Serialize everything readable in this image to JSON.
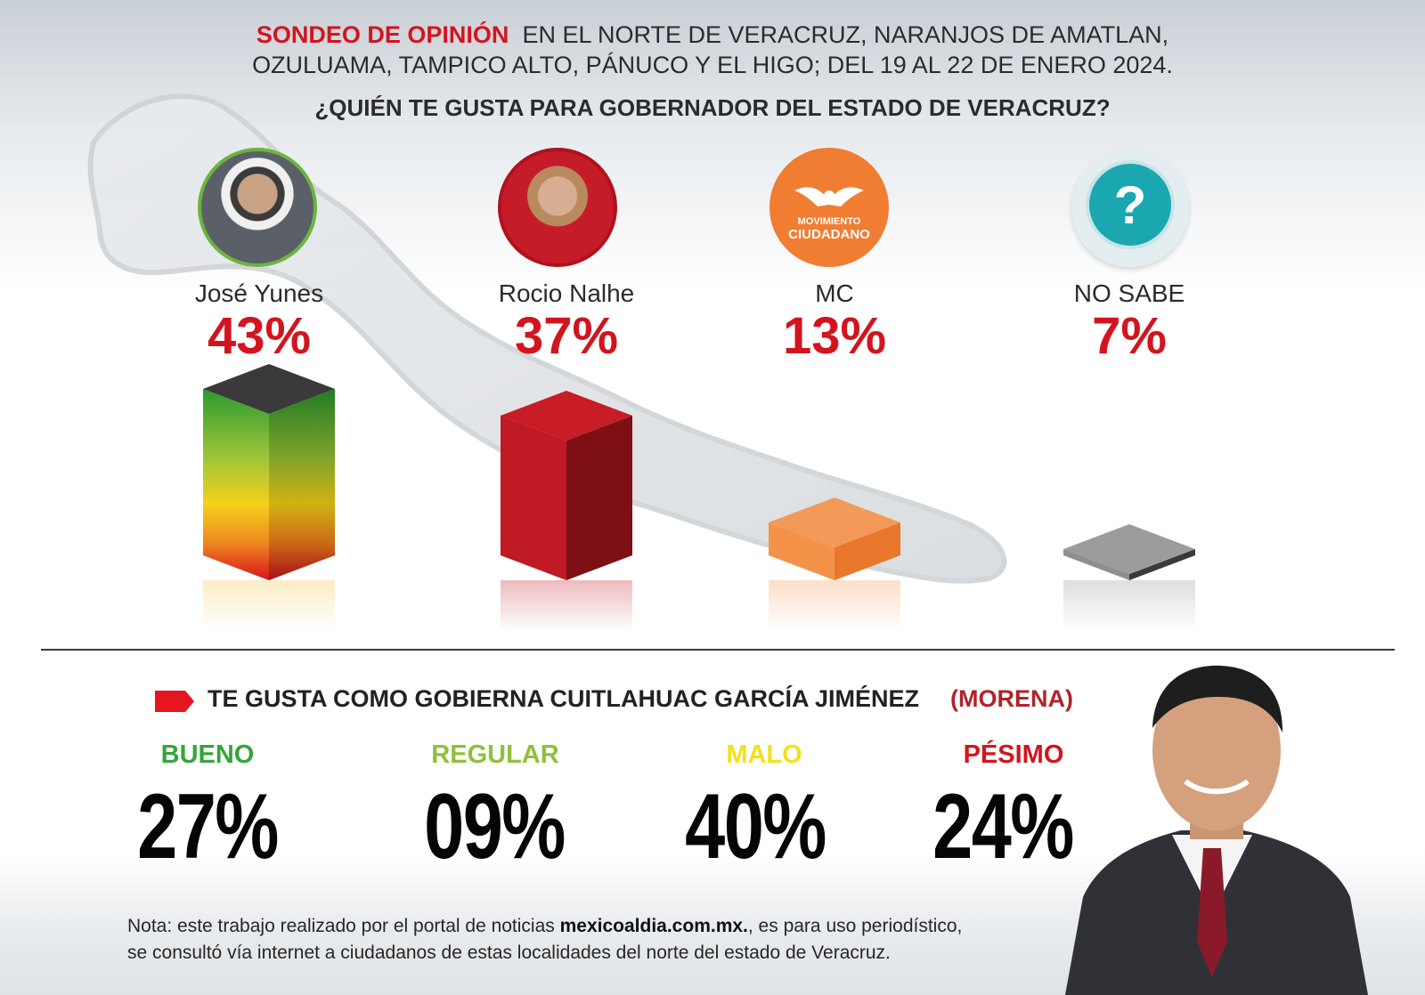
{
  "header": {
    "title_red": "SONDEO DE OPINIÓN",
    "title_rest": "EN EL NORTE DE VERACRUZ, NARANJOS DE AMATLAN,",
    "line2": "OZULUAMA, TAMPICO ALTO, PÁNUCO Y EL HIGO; DEL 19 AL 22 DE ENERO 2024.",
    "question": "¿QUIÉN TE GUSTA PARA GOBERNADOR DEL ESTADO DE VERACRUZ?"
  },
  "chart_data": [
    {
      "type": "bar",
      "title": "¿QUIÉN TE GUSTA PARA GOBERNADOR DEL ESTADO DE VERACRUZ?",
      "categories": [
        "José Yunes",
        "Rocio Nalhe",
        "MC",
        "NO SABE"
      ],
      "values": [
        43,
        37,
        13,
        7
      ],
      "value_labels": [
        "43%",
        "37%",
        "13%",
        "7%"
      ],
      "unit": "%",
      "colors": [
        "#2ea02c",
        "#b0121b",
        "#f07d32",
        "#8a8a8a"
      ]
    },
    {
      "type": "table",
      "title": "TE GUSTA COMO GOBIERNA CUITLAHUAC GARCÍA JIMÉNEZ",
      "categories": [
        "BUENO",
        "REGULAR",
        "MALO",
        "PÉSIMO"
      ],
      "values": [
        27,
        9,
        40,
        24
      ],
      "value_labels": [
        "27%",
        "09%",
        "40%",
        "24%"
      ],
      "colors": [
        "#35a53b",
        "#8fc03a",
        "#f2e21b",
        "#d3141e"
      ]
    }
  ],
  "candidates": [
    {
      "name": "José Yunes",
      "pct": "43%",
      "icon": "person-photo-icon",
      "ring": "#6db33f"
    },
    {
      "name": "Rocio Nalhe",
      "pct": "37%",
      "icon": "person-photo-icon",
      "ring": "#b0121b"
    },
    {
      "name": "MC",
      "pct": "13%",
      "icon": "movimiento-ciudadano-logo",
      "ring": "#f07d32"
    },
    {
      "name": "NO SABE",
      "pct": "7%",
      "icon": "question-mark-icon",
      "ring": "#ffffff"
    }
  ],
  "logo": {
    "line1": "MOVIMIENTO",
    "line2": "CIUDADANO"
  },
  "question_mark": "?",
  "approval": {
    "title": "TE GUSTA COMO GOBIERNA CUITLAHUAC GARCÍA JIMÉNEZ",
    "party": "(MORENA)",
    "ratings": [
      {
        "label": "BUENO",
        "pct": "27%",
        "color": "#35a53b"
      },
      {
        "label": "REGULAR",
        "pct": "09%",
        "color": "#8fc03a"
      },
      {
        "label": "MALO",
        "pct": "40%",
        "color": "#f2e21b"
      },
      {
        "label": "PÉSIMO",
        "pct": "24%",
        "color": "#d3141e"
      }
    ]
  },
  "note": {
    "part1": "Nota: este trabajo realizado por el portal de noticias ",
    "site": "mexicoaldia.com.mx.",
    "part2": ", es para uso periodístico,",
    "line2": "se consultó vía internet a ciudadanos de estas localidades del norte del estado de Veracruz."
  }
}
